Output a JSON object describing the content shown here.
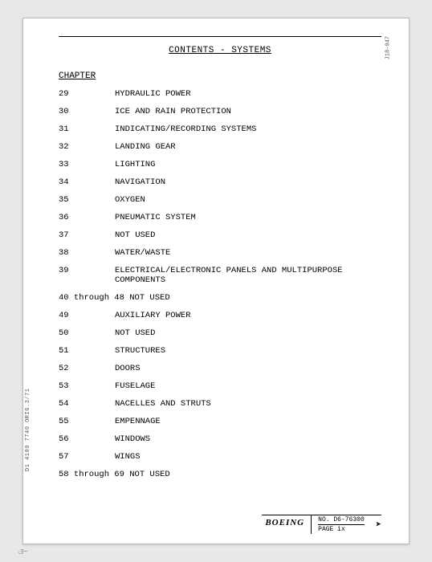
{
  "title": "CONTENTS - SYSTEMS",
  "chapter_heading": "CHAPTER",
  "rows": [
    {
      "type": "item",
      "num": "29",
      "label": "HYDRAULIC POWER"
    },
    {
      "type": "item",
      "num": "30",
      "label": "ICE AND RAIN PROTECTION"
    },
    {
      "type": "item",
      "num": "31",
      "label": "INDICATING/RECORDING SYSTEMS"
    },
    {
      "type": "item",
      "num": "32",
      "label": "LANDING GEAR"
    },
    {
      "type": "item",
      "num": "33",
      "label": "LIGHTING"
    },
    {
      "type": "item",
      "num": "34",
      "label": "NAVIGATION"
    },
    {
      "type": "item",
      "num": "35",
      "label": "OXYGEN"
    },
    {
      "type": "item",
      "num": "36",
      "label": "PNEUMATIC SYSTEM"
    },
    {
      "type": "item",
      "num": "37",
      "label": "NOT USED"
    },
    {
      "type": "item",
      "num": "38",
      "label": "WATER/WASTE"
    },
    {
      "type": "item",
      "num": "39",
      "label": "ELECTRICAL/ELECTRONIC PANELS AND MULTIPURPOSE COMPONENTS"
    },
    {
      "type": "range",
      "text": "40 through 48  NOT USED"
    },
    {
      "type": "item",
      "num": "49",
      "label": "AUXILIARY POWER"
    },
    {
      "type": "item",
      "num": "50",
      "label": "NOT USED"
    },
    {
      "type": "item",
      "num": "51",
      "label": "STRUCTURES"
    },
    {
      "type": "item",
      "num": "52",
      "label": "DOORS"
    },
    {
      "type": "item",
      "num": "53",
      "label": "FUSELAGE"
    },
    {
      "type": "item",
      "num": "54",
      "label": "NACELLES AND STRUTS"
    },
    {
      "type": "item",
      "num": "55",
      "label": "EMPENNAGE"
    },
    {
      "type": "item",
      "num": "56",
      "label": "WINDOWS"
    },
    {
      "type": "item",
      "num": "57",
      "label": "WINGS"
    },
    {
      "type": "range",
      "text": "58 through 69  NOT USED"
    }
  ],
  "side_left": "D1 4100 7740 ORIG.3/71",
  "side_right": "J18-047",
  "footer": {
    "brand": "BOEING",
    "no_label": "NO.",
    "no_value": "D6-76300",
    "page_label": "PAGE",
    "page_value": "ix",
    "arrow": "➤"
  },
  "scribble": "૩~"
}
